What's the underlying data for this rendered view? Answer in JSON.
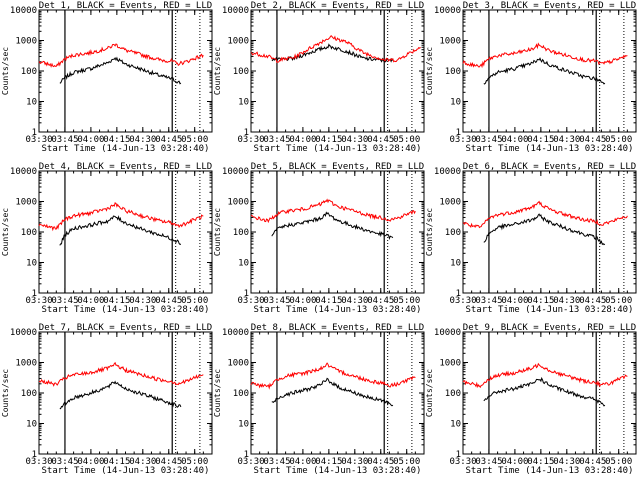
{
  "figure": {
    "panel_title_template": "Det {n}, BLACK = Events, RED = LLD",
    "xlabel": "Start Time (14-Jun-13 03:28:40)",
    "ylabel": "Counts/sec"
  },
  "colors": {
    "events": "#000000",
    "lld": "#ff0000",
    "axes": "#000000"
  },
  "chart_data": [
    {
      "type": "line",
      "detector": 1,
      "title": "Det 1, BLACK = Events, RED = LLD",
      "xlabel": "Start Time (14-Jun-13 03:28:40)",
      "ylabel": "Counts/sec",
      "yscale": "log",
      "ylim": [
        1,
        10000
      ],
      "xlim": [
        "03:30",
        "05:10"
      ],
      "xticks": [
        "03:30",
        "03:45",
        "04:00",
        "04:15",
        "04:30",
        "04:45",
        "05:00"
      ],
      "yticks": [
        "1",
        "10",
        "100",
        "1000",
        "10000"
      ],
      "vlines": {
        "solid": [
          "03:45",
          "04:47"
        ],
        "dotted": [
          "04:49",
          "05:03"
        ]
      },
      "series": [
        {
          "name": "Events",
          "color": "#000000",
          "x": [
            "03:42",
            "03:45",
            "03:50",
            "04:00",
            "04:10",
            "04:14",
            "04:20",
            "04:30",
            "04:40",
            "04:47",
            "04:50",
            "04:52"
          ],
          "values": [
            40,
            60,
            90,
            120,
            190,
            270,
            170,
            110,
            70,
            55,
            45,
            40
          ]
        },
        {
          "name": "LLD",
          "color": "#ff0000",
          "x": [
            "03:30",
            "03:35",
            "03:40",
            "03:45",
            "03:50",
            "04:00",
            "04:10",
            "04:14",
            "04:20",
            "04:30",
            "04:40",
            "04:47",
            "04:50",
            "04:55",
            "05:00",
            "05:05"
          ],
          "values": [
            200,
            170,
            140,
            250,
            330,
            400,
            560,
            750,
            480,
            330,
            230,
            210,
            170,
            200,
            260,
            330
          ]
        }
      ]
    },
    {
      "type": "line",
      "detector": 2,
      "title": "Det 2, BLACK = Events, RED = LLD",
      "xlabel": "Start Time (14-Jun-13 03:28:40)",
      "ylabel": "Counts/sec",
      "yscale": "log",
      "ylim": [
        1,
        10000
      ],
      "xlim": [
        "03:30",
        "05:10"
      ],
      "xticks": [
        "03:30",
        "03:45",
        "04:00",
        "04:15",
        "04:30",
        "04:45",
        "05:00"
      ],
      "yticks": [
        "1",
        "10",
        "100",
        "1000",
        "10000"
      ],
      "vlines": {
        "solid": [
          "03:45",
          "04:47"
        ],
        "dotted": [
          "04:49",
          "05:03"
        ]
      },
      "series": [
        {
          "name": "Events",
          "color": "#000000",
          "x": [
            "03:42",
            "03:45",
            "03:55",
            "04:05",
            "04:15",
            "04:25",
            "04:35",
            "04:47",
            "04:52"
          ],
          "values": [
            250,
            230,
            260,
            420,
            650,
            450,
            260,
            220,
            220
          ]
        },
        {
          "name": "LLD",
          "color": "#ff0000",
          "x": [
            "03:30",
            "03:40",
            "03:45",
            "03:55",
            "04:05",
            "04:12",
            "04:16",
            "04:25",
            "04:35",
            "04:47",
            "04:55",
            "05:00",
            "05:08"
          ],
          "values": [
            400,
            300,
            220,
            280,
            600,
            1000,
            1300,
            900,
            400,
            230,
            230,
            350,
            600
          ]
        }
      ]
    },
    {
      "type": "line",
      "detector": 3,
      "title": "Det 3, BLACK = Events, RED = LLD",
      "xlabel": "Start Time (14-Jun-13 03:28:40)",
      "ylabel": "Counts/sec",
      "yscale": "log",
      "ylim": [
        1,
        10000
      ],
      "xlim": [
        "03:30",
        "05:10"
      ],
      "xticks": [
        "03:30",
        "03:45",
        "04:00",
        "04:15",
        "04:30",
        "04:45",
        "05:00"
      ],
      "yticks": [
        "1",
        "10",
        "100",
        "1000",
        "10000"
      ],
      "vlines": {
        "solid": [
          "03:45",
          "04:47"
        ],
        "dotted": [
          "04:49",
          "05:03"
        ]
      },
      "series": [
        {
          "name": "Events",
          "color": "#000000",
          "x": [
            "03:42",
            "03:45",
            "03:50",
            "04:00",
            "04:10",
            "04:14",
            "04:20",
            "04:30",
            "04:40",
            "04:47",
            "04:50",
            "04:52"
          ],
          "values": [
            40,
            60,
            90,
            120,
            180,
            250,
            160,
            100,
            65,
            55,
            45,
            40
          ]
        },
        {
          "name": "LLD",
          "color": "#ff0000",
          "x": [
            "03:30",
            "03:35",
            "03:40",
            "03:45",
            "03:50",
            "04:00",
            "04:10",
            "04:14",
            "04:20",
            "04:30",
            "04:40",
            "04:47",
            "04:50",
            "04:55",
            "05:00",
            "05:05"
          ],
          "values": [
            200,
            160,
            140,
            250,
            320,
            380,
            520,
            720,
            460,
            320,
            230,
            210,
            170,
            200,
            250,
            320
          ]
        }
      ]
    },
    {
      "type": "line",
      "detector": 4,
      "title": "Det 4, BLACK = Events, RED = LLD",
      "xlabel": "Start Time (14-Jun-13 03:28:40)",
      "ylabel": "Counts/sec",
      "yscale": "log",
      "ylim": [
        1,
        10000
      ],
      "xlim": [
        "03:30",
        "05:10"
      ],
      "xticks": [
        "03:30",
        "03:45",
        "04:00",
        "04:15",
        "04:30",
        "04:45",
        "05:00"
      ],
      "yticks": [
        "1",
        "10",
        "100",
        "1000",
        "10000"
      ],
      "vlines": {
        "solid": [
          "03:45",
          "04:47"
        ],
        "dotted": [
          "04:49",
          "05:03"
        ]
      },
      "series": [
        {
          "name": "Events",
          "color": "#000000",
          "x": [
            "03:42",
            "03:45",
            "03:50",
            "04:00",
            "04:10",
            "04:14",
            "04:20",
            "04:30",
            "04:40",
            "04:47",
            "04:50",
            "04:52"
          ],
          "values": [
            35,
            80,
            130,
            170,
            230,
            320,
            200,
            120,
            80,
            60,
            50,
            40
          ]
        },
        {
          "name": "LLD",
          "color": "#ff0000",
          "x": [
            "03:30",
            "03:35",
            "03:40",
            "03:45",
            "03:50",
            "04:00",
            "04:10",
            "04:14",
            "04:20",
            "04:30",
            "04:40",
            "04:47",
            "04:50",
            "04:55",
            "05:00",
            "05:05"
          ],
          "values": [
            180,
            150,
            130,
            260,
            340,
            420,
            600,
            800,
            500,
            330,
            230,
            200,
            160,
            190,
            260,
            330
          ]
        }
      ]
    },
    {
      "type": "line",
      "detector": 5,
      "title": "Det 5, BLACK = Events, RED = LLD",
      "xlabel": "Start Time (14-Jun-13 03:28:40)",
      "ylabel": "Counts/sec",
      "yscale": "log",
      "ylim": [
        1,
        10000
      ],
      "xlim": [
        "03:30",
        "05:10"
      ],
      "xticks": [
        "03:30",
        "03:45",
        "04:00",
        "04:15",
        "04:30",
        "04:45",
        "05:00"
      ],
      "yticks": [
        "1",
        "10",
        "100",
        "1000",
        "10000"
      ],
      "vlines": {
        "solid": [
          "03:45",
          "04:47"
        ],
        "dotted": [
          "04:49",
          "05:03"
        ]
      },
      "series": [
        {
          "name": "Events",
          "color": "#000000",
          "x": [
            "03:42",
            "03:45",
            "03:50",
            "04:00",
            "04:10",
            "04:14",
            "04:20",
            "04:30",
            "04:40",
            "04:47",
            "04:50",
            "04:52"
          ],
          "values": [
            70,
            120,
            160,
            200,
            280,
            400,
            240,
            150,
            100,
            80,
            70,
            65
          ]
        },
        {
          "name": "LLD",
          "color": "#ff0000",
          "x": [
            "03:30",
            "03:35",
            "03:40",
            "03:45",
            "03:50",
            "04:00",
            "04:10",
            "04:14",
            "04:20",
            "04:30",
            "04:40",
            "04:47",
            "04:50",
            "04:55",
            "05:00",
            "05:05"
          ],
          "values": [
            320,
            270,
            230,
            380,
            480,
            560,
            800,
            1100,
            700,
            480,
            330,
            290,
            250,
            290,
            380,
            480
          ]
        }
      ]
    },
    {
      "type": "line",
      "detector": 6,
      "title": "Det 6, BLACK = Events, RED = LLD",
      "xlabel": "Start Time (14-Jun-13 03:28:40)",
      "ylabel": "Counts/sec",
      "yscale": "log",
      "ylim": [
        1,
        10000
      ],
      "xlim": [
        "03:30",
        "05:10"
      ],
      "xticks": [
        "03:30",
        "03:45",
        "04:00",
        "04:15",
        "04:30",
        "04:45",
        "05:00"
      ],
      "yticks": [
        "1",
        "10",
        "100",
        "1000",
        "10000"
      ],
      "vlines": {
        "solid": [
          "03:45",
          "04:47"
        ],
        "dotted": [
          "04:49",
          "05:03"
        ]
      },
      "series": [
        {
          "name": "Events",
          "color": "#000000",
          "x": [
            "03:42",
            "03:45",
            "03:50",
            "04:00",
            "04:10",
            "04:14",
            "04:20",
            "04:30",
            "04:40",
            "04:47",
            "04:50",
            "04:52"
          ],
          "values": [
            45,
            90,
            140,
            180,
            250,
            340,
            210,
            130,
            85,
            65,
            45,
            40
          ]
        },
        {
          "name": "LLD",
          "color": "#ff0000",
          "x": [
            "03:30",
            "03:35",
            "03:40",
            "03:45",
            "03:50",
            "04:00",
            "04:10",
            "04:14",
            "04:20",
            "04:30",
            "04:40",
            "04:47",
            "04:50",
            "04:55",
            "05:00",
            "05:05"
          ],
          "values": [
            200,
            160,
            140,
            280,
            370,
            450,
            650,
            900,
            550,
            360,
            250,
            220,
            180,
            210,
            270,
            340
          ]
        }
      ]
    },
    {
      "type": "line",
      "detector": 7,
      "title": "Det 7, BLACK = Events, RED = LLD",
      "xlabel": "Start Time (14-Jun-13 03:28:40)",
      "ylabel": "Counts/sec",
      "yscale": "log",
      "ylim": [
        1,
        10000
      ],
      "xlim": [
        "03:30",
        "05:10"
      ],
      "xticks": [
        "03:30",
        "03:45",
        "04:00",
        "04:15",
        "04:30",
        "04:45",
        "05:00"
      ],
      "yticks": [
        "1",
        "10",
        "100",
        "1000",
        "10000"
      ],
      "vlines": {
        "solid": [
          "03:45",
          "04:47"
        ],
        "dotted": [
          "04:49",
          "05:03"
        ]
      },
      "series": [
        {
          "name": "Events",
          "color": "#000000",
          "x": [
            "03:42",
            "03:45",
            "03:50",
            "04:00",
            "04:10",
            "04:14",
            "04:20",
            "04:30",
            "04:40",
            "04:47",
            "04:50",
            "04:52"
          ],
          "values": [
            28,
            45,
            70,
            100,
            160,
            230,
            140,
            90,
            60,
            45,
            38,
            35
          ]
        },
        {
          "name": "LLD",
          "color": "#ff0000",
          "x": [
            "03:30",
            "03:35",
            "03:40",
            "03:45",
            "03:50",
            "04:00",
            "04:10",
            "04:14",
            "04:20",
            "04:30",
            "04:40",
            "04:47",
            "04:50",
            "04:55",
            "05:00",
            "05:05"
          ],
          "values": [
            260,
            220,
            190,
            310,
            390,
            470,
            650,
            850,
            560,
            380,
            270,
            240,
            200,
            240,
            320,
            400
          ]
        }
      ]
    },
    {
      "type": "line",
      "detector": 8,
      "title": "Det 8, BLACK = Events, RED = LLD",
      "xlabel": "Start Time (14-Jun-13 03:28:40)",
      "ylabel": "Counts/sec",
      "yscale": "log",
      "ylim": [
        1,
        10000
      ],
      "xlim": [
        "03:30",
        "05:10"
      ],
      "xticks": [
        "03:30",
        "03:45",
        "04:00",
        "04:15",
        "04:30",
        "04:45",
        "05:00"
      ],
      "yticks": [
        "1",
        "10",
        "100",
        "1000",
        "10000"
      ],
      "vlines": {
        "solid": [
          "03:45",
          "04:47"
        ],
        "dotted": [
          "04:49",
          "05:03"
        ]
      },
      "series": [
        {
          "name": "Events",
          "color": "#000000",
          "x": [
            "03:42",
            "03:45",
            "03:50",
            "04:00",
            "04:10",
            "04:14",
            "04:20",
            "04:30",
            "04:40",
            "04:47",
            "04:50",
            "04:52"
          ],
          "values": [
            45,
            65,
            90,
            120,
            180,
            280,
            160,
            100,
            65,
            55,
            45,
            40
          ]
        },
        {
          "name": "LLD",
          "color": "#ff0000",
          "x": [
            "03:30",
            "03:35",
            "03:40",
            "03:45",
            "03:50",
            "04:00",
            "04:10",
            "04:14",
            "04:20",
            "04:30",
            "04:40",
            "04:47",
            "04:50",
            "04:55",
            "05:00",
            "05:05"
          ],
          "values": [
            210,
            180,
            160,
            270,
            360,
            440,
            620,
            850,
            530,
            350,
            240,
            210,
            170,
            200,
            260,
            320
          ]
        }
      ]
    },
    {
      "type": "line",
      "detector": 9,
      "title": "Det 9, BLACK = Events, RED = LLD",
      "xlabel": "Start Time (14-Jun-13 03:28:40)",
      "ylabel": "Counts/sec",
      "yscale": "log",
      "ylim": [
        1,
        10000
      ],
      "xlim": [
        "03:30",
        "05:10"
      ],
      "xticks": [
        "03:30",
        "03:45",
        "04:00",
        "04:15",
        "04:30",
        "04:45",
        "05:00"
      ],
      "yticks": [
        "1",
        "10",
        "100",
        "1000",
        "10000"
      ],
      "vlines": {
        "solid": [
          "03:45",
          "04:47"
        ],
        "dotted": [
          "04:49",
          "05:03"
        ]
      },
      "series": [
        {
          "name": "Events",
          "color": "#000000",
          "x": [
            "03:42",
            "03:45",
            "03:50",
            "04:00",
            "04:10",
            "04:14",
            "04:20",
            "04:30",
            "04:40",
            "04:47",
            "04:50",
            "04:52"
          ],
          "values": [
            55,
            80,
            110,
            140,
            200,
            300,
            180,
            110,
            75,
            60,
            45,
            40
          ]
        },
        {
          "name": "LLD",
          "color": "#ff0000",
          "x": [
            "03:30",
            "03:35",
            "03:40",
            "03:45",
            "03:50",
            "04:00",
            "04:10",
            "04:14",
            "04:20",
            "04:30",
            "04:40",
            "04:47",
            "04:50",
            "04:55",
            "05:00",
            "05:05"
          ],
          "values": [
            230,
            200,
            170,
            290,
            380,
            460,
            640,
            880,
            550,
            360,
            250,
            220,
            180,
            210,
            280,
            350
          ]
        }
      ]
    }
  ]
}
